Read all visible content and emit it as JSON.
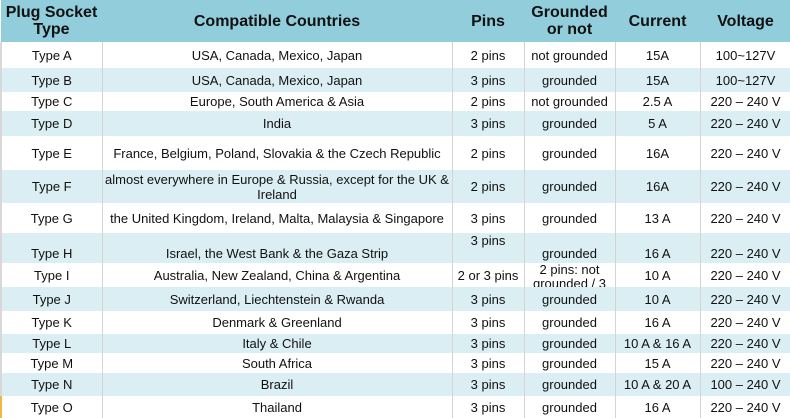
{
  "table": {
    "headers": [
      "Plug Socket Type",
      "Compatible Countries",
      "Pins",
      "Grounded or not",
      "Current",
      "Voltage"
    ],
    "rows": [
      {
        "type": "Type A",
        "countries": "USA, Canada, Mexico, Japan",
        "pins": "2 pins",
        "grounded": "not grounded",
        "current": "15A",
        "voltage": "100~127V"
      },
      {
        "type": "Type B",
        "countries": "USA, Canada, Mexico, Japan",
        "pins": "3 pins",
        "grounded": "grounded",
        "current": "15A",
        "voltage": "100~127V"
      },
      {
        "type": "Type C",
        "countries": "Europe, South America & Asia",
        "pins": "2 pins",
        "grounded": "not grounded",
        "current": "2.5 A",
        "voltage": "220 – 240 V"
      },
      {
        "type": "Type D",
        "countries": "India",
        "pins": "3 pins",
        "grounded": "grounded",
        "current": "5 A",
        "voltage": "220 – 240 V"
      },
      {
        "type": "Type E",
        "countries": "France, Belgium, Poland, Slovakia & the Czech Republic",
        "pins": "2 pins",
        "grounded": "grounded",
        "current": "16A",
        "voltage": "220 – 240 V"
      },
      {
        "type": "Type F",
        "countries": "almost everywhere in Europe & Russia, except for the UK & Ireland",
        "pins": "2 pins",
        "grounded": "grounded",
        "current": "16A",
        "voltage": "220 – 240 V"
      },
      {
        "type": "Type G",
        "countries": "the United Kingdom, Ireland, Malta, Malaysia & Singapore",
        "pins": "3 pins",
        "grounded": "grounded",
        "current": "13 A",
        "voltage": "220 – 240 V"
      },
      {
        "type": "Type H",
        "countries": "Israel, the West Bank & the Gaza Strip",
        "pins": "3 pins",
        "grounded": "grounded",
        "current": "16 A",
        "voltage": "220 – 240 V"
      },
      {
        "type": "Type I",
        "countries": "Australia, New Zealand, China & Argentina",
        "pins": "2 or 3 pins",
        "grounded": "2 pins: not grounded / 3",
        "current": "10 A",
        "voltage": "220 – 240 V"
      },
      {
        "type": "Type J",
        "countries": "Switzerland, Liechtenstein & Rwanda",
        "pins": "3 pins",
        "grounded": "grounded",
        "current": "10 A",
        "voltage": "220 – 240 V"
      },
      {
        "type": "Type K",
        "countries": "Denmark & Greenland",
        "pins": "3 pins",
        "grounded": "grounded",
        "current": "16 A",
        "voltage": "220 – 240 V"
      },
      {
        "type": "Type L",
        "countries": "Italy & Chile",
        "pins": "3 pins",
        "grounded": "grounded",
        "current": "10 A & 16 A",
        "voltage": "220 – 240 V"
      },
      {
        "type": "Type M",
        "countries": "South Africa",
        "pins": "3 pins",
        "grounded": "grounded",
        "current": "15 A",
        "voltage": "220 – 240 V"
      },
      {
        "type": "Type N",
        "countries": "Brazil",
        "pins": "3 pins",
        "grounded": "grounded",
        "current": "10 A & 20 A",
        "voltage": "100 – 240 V"
      },
      {
        "type": "Type O",
        "countries": "Thailand",
        "pins": "3 pins",
        "grounded": "grounded",
        "current": "16 A",
        "voltage": "220 – 240 V"
      }
    ]
  },
  "colors": {
    "header": "#92cddc",
    "alt_row": "#daeef3",
    "row": "#ffffff"
  }
}
